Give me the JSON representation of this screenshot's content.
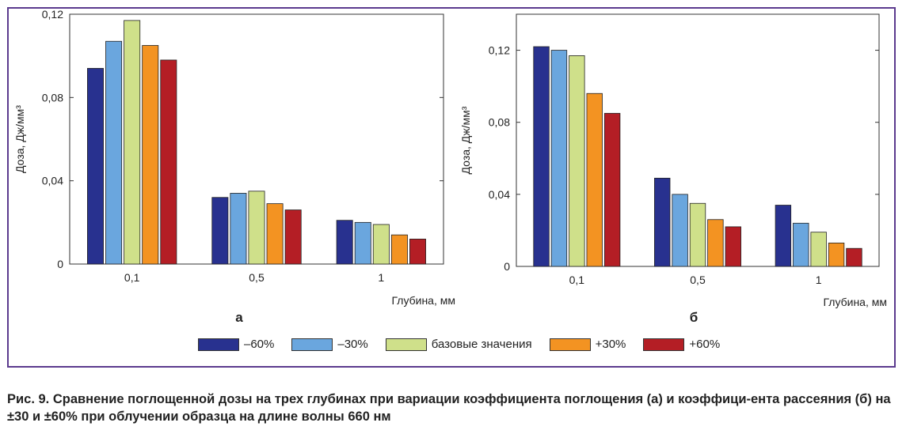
{
  "caption": {
    "text": "Рис. 9. Сравнение поглощенной дозы на трех глубинах при вариации коэффициента поглощения (а) и коэффици-ента рассеяния (б) на ±30 и ±60% при облучении образца на длине волны 660 нм"
  },
  "legend": [
    {
      "label": "–60%",
      "color": "#28318f"
    },
    {
      "label": "–30%",
      "color": "#6aa6de"
    },
    {
      "label": "базовые значения",
      "color": "#cfe08a"
    },
    {
      "label": "+30%",
      "color": "#f39322"
    },
    {
      "label": "+60%",
      "color": "#b41e25"
    }
  ],
  "chart_data": [
    {
      "type": "bar",
      "panel_label": "а",
      "categories": [
        "0,1",
        "0,5",
        "1"
      ],
      "xlabel": "Глубина, мм",
      "ylabel": "Доза, Дж/мм³",
      "ylim": [
        0,
        0.12
      ],
      "yticks": [
        0,
        0.04,
        0.08,
        0.12
      ],
      "ytick_labels": [
        "0",
        "0,04",
        "0,08",
        "0,12"
      ],
      "series": [
        {
          "name": "–60%",
          "values": [
            0.094,
            0.032,
            0.021
          ]
        },
        {
          "name": "–30%",
          "values": [
            0.107,
            0.034,
            0.02
          ]
        },
        {
          "name": "базовые значения",
          "values": [
            0.117,
            0.035,
            0.019
          ]
        },
        {
          "name": "+30%",
          "values": [
            0.105,
            0.029,
            0.014
          ]
        },
        {
          "name": "+60%",
          "values": [
            0.098,
            0.026,
            0.012
          ]
        }
      ]
    },
    {
      "type": "bar",
      "panel_label": "б",
      "categories": [
        "0,1",
        "0,5",
        "1"
      ],
      "xlabel": "Глубина, мм",
      "ylabel": "Доза, Дж/мм³",
      "ylim": [
        0,
        0.14
      ],
      "yticks": [
        0,
        0.04,
        0.08,
        0.12
      ],
      "ytick_labels": [
        "0",
        "0,04",
        "0,08",
        "0,12"
      ],
      "series": [
        {
          "name": "–60%",
          "values": [
            0.122,
            0.049,
            0.034
          ]
        },
        {
          "name": "–30%",
          "values": [
            0.12,
            0.04,
            0.024
          ]
        },
        {
          "name": "базовые значения",
          "values": [
            0.117,
            0.035,
            0.019
          ]
        },
        {
          "name": "+30%",
          "values": [
            0.096,
            0.026,
            0.013
          ]
        },
        {
          "name": "+60%",
          "values": [
            0.085,
            0.022,
            0.01
          ]
        }
      ]
    }
  ]
}
